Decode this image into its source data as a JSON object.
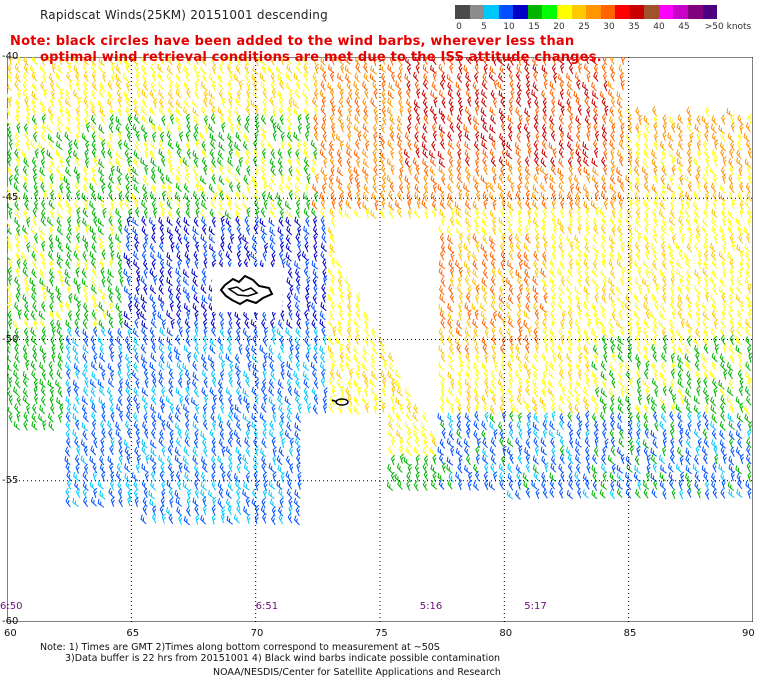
{
  "title": "Rapidscat Winds(25KM) 20151001 descending",
  "note_lines": [
    "Note: black circles have been added to the wind barbs, wherever less than",
    "optimal wind retrieval conditions are met due to the ISS attitude changes."
  ],
  "colorbar": {
    "labels": [
      "0",
      "5",
      "10",
      "15",
      "20",
      "25",
      "30",
      "35",
      "40",
      "45",
      ">50 knots"
    ],
    "colors": [
      "#4a4a4a",
      "#8c8c8c",
      "#00c8ff",
      "#0050ff",
      "#0000c8",
      "#00b400",
      "#00ff00",
      "#ffff00",
      "#ffc800",
      "#ff9600",
      "#ff6400",
      "#ff0000",
      "#c80000",
      "#a0522d",
      "#ff00ff",
      "#c800c8",
      "#800080",
      "#4b0082"
    ]
  },
  "map": {
    "lat_labels": [
      "-40",
      "-45",
      "-50",
      "-55",
      "-60"
    ],
    "lon_labels": [
      "60",
      "65",
      "70",
      "75",
      "80",
      "85",
      "90"
    ],
    "lat_range": [
      -60,
      -40
    ],
    "lon_range": [
      60,
      90
    ],
    "gridlines": true
  },
  "times": [
    {
      "label": "6:50",
      "lon": 60.0
    },
    {
      "label": "6:51",
      "lon": 70.0
    },
    {
      "label": "5:16",
      "lon": 76.6
    },
    {
      "label": "5:17",
      "lon": 80.8
    }
  ],
  "footer": {
    "line1": "Note: 1) Times are GMT 2)Times along bottom correspond to measurement at ~50S",
    "line2": "3)Data buffer is 22 hrs from 20151001 4) Black wind barbs indicate possible contamination",
    "credit": "NOAA/NESDIS/Center for Satellite Applications and Research"
  }
}
